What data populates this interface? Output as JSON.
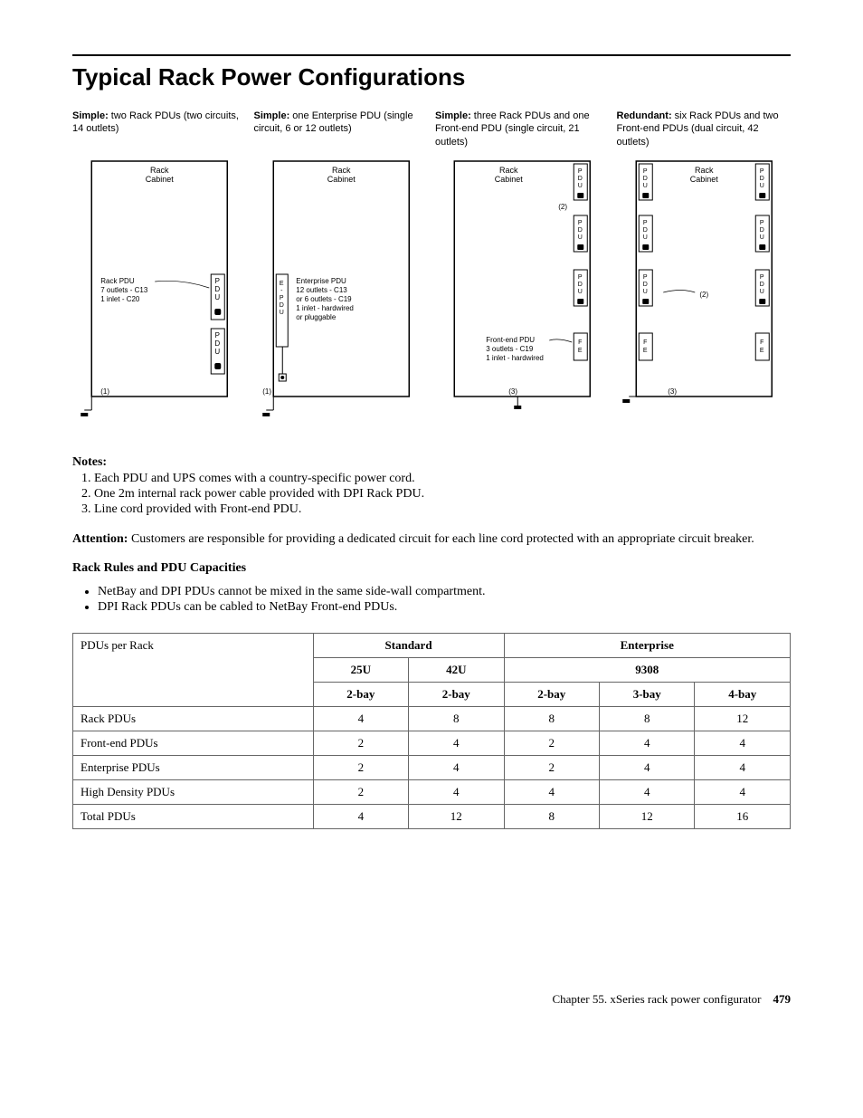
{
  "heading": "Typical Rack Power Configurations",
  "diagrams": [
    {
      "title_bold": "Simple:",
      "title_rest": " two Rack PDUs (two circuits, 14 outlets)",
      "rack_label": "Rack Cabinet",
      "pdu_text": "Rack PDU\n7 outlets - C13\n1 inlet - C20",
      "footnote": "(1)"
    },
    {
      "title_bold": "Simple:",
      "title_rest": " one Enterprise PDU (single circuit, 6 or 12 outlets)",
      "rack_label": "Rack Cabinet",
      "pdu_text": "Enterprise PDU\n12 outlets - C13\nor 6 outlets - C19\n1 inlet - hardwired\nor pluggable",
      "footnote": "(1)"
    },
    {
      "title_bold": "Simple:",
      "title_rest": " three Rack PDUs and one Front-end PDU (single circuit, 21 outlets)",
      "rack_label": "Rack Cabinet",
      "pdu_text": "Front-end PDU\n3 outlets - C19\n1 inlet - hardwired",
      "footnote": "(3)",
      "note2": "(2)"
    },
    {
      "title_bold": "Redundant:",
      "title_rest": " six Rack PDUs and two Front-end PDUs (dual circuit, 42 outlets)",
      "rack_label": "Rack Cabinet",
      "footnote": "(3)",
      "note2": "(2)"
    }
  ],
  "notes_label": "Notes:",
  "notes": [
    "Each PDU and UPS comes with a country-specific power cord.",
    "One 2m internal rack power cable provided with DPI Rack PDU.",
    "Line cord provided with Front-end PDU."
  ],
  "attention_label": "Attention:",
  "attention_text": " Customers are responsible for providing a dedicated circuit for each line cord protected with an appropriate circuit breaker.",
  "rules_heading": "Rack Rules and PDU Capacities",
  "bullets": [
    "NetBay and DPI PDUs cannot be mixed in the same side-wall compartment.",
    "DPI Rack PDUs can be cabled to NetBay Front-end PDUs."
  ],
  "table": {
    "col1_header": "PDUs per Rack",
    "standard": "Standard",
    "enterprise": "Enterprise",
    "h25u": "25U",
    "h42u": "42U",
    "h9308": "9308",
    "b2_1": "2-bay",
    "b2_2": "2-bay",
    "b2_3": "2-bay",
    "b3": "3-bay",
    "b4": "4-bay",
    "rows": [
      {
        "label": "Rack PDUs",
        "v": [
          "4",
          "8",
          "8",
          "8",
          "12"
        ]
      },
      {
        "label": "Front-end PDUs",
        "v": [
          "2",
          "4",
          "2",
          "4",
          "4"
        ]
      },
      {
        "label": "Enterprise PDUs",
        "v": [
          "2",
          "4",
          "2",
          "4",
          "4"
        ]
      },
      {
        "label": "High Density PDUs",
        "v": [
          "2",
          "4",
          "4",
          "4",
          "4"
        ]
      },
      {
        "label": "Total PDUs",
        "v": [
          "4",
          "12",
          "8",
          "12",
          "16"
        ]
      }
    ]
  },
  "footer_chapter": "Chapter 55.  xSeries rack power configurator",
  "footer_page": "479"
}
